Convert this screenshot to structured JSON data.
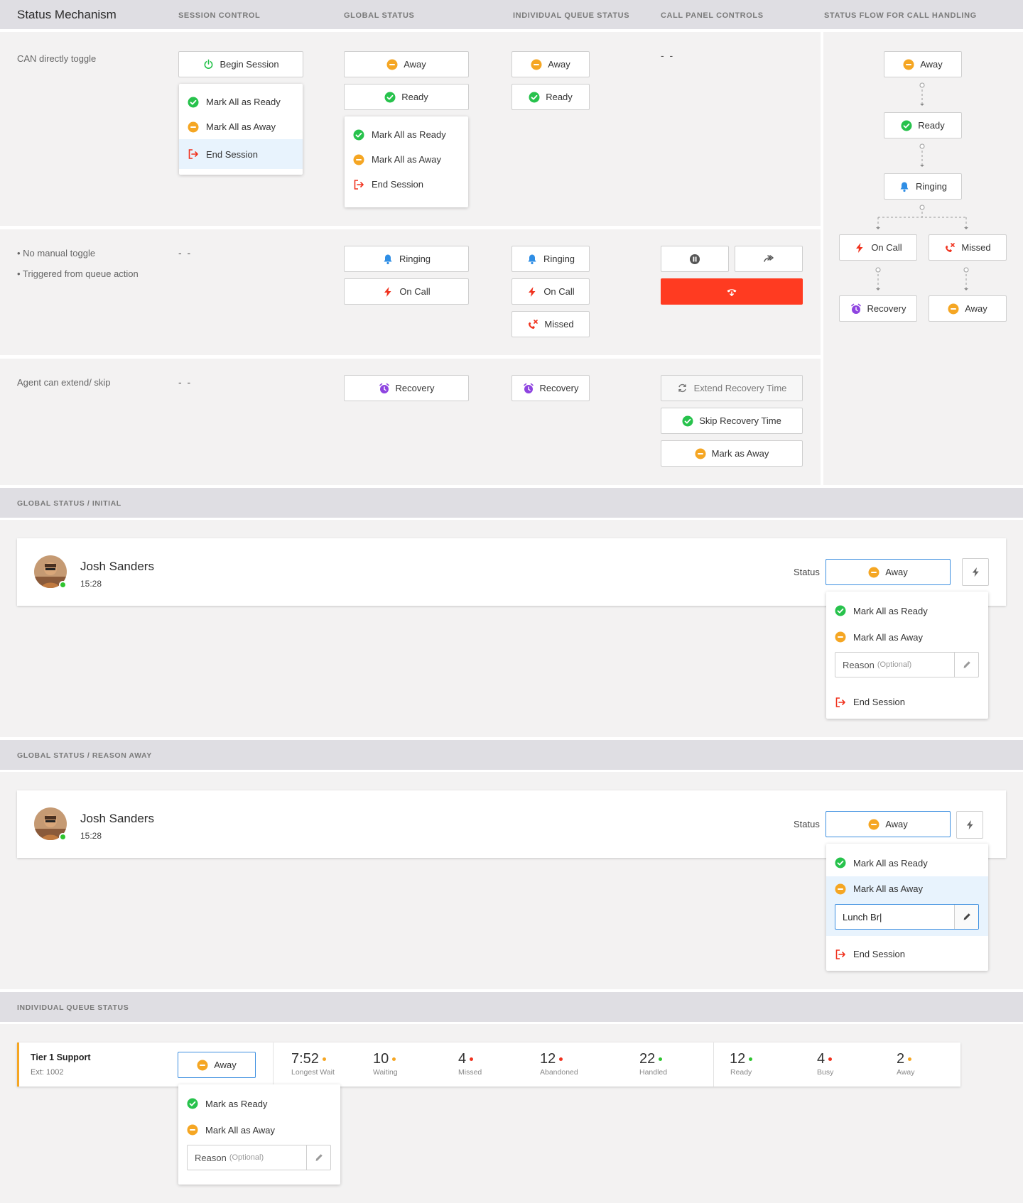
{
  "header": {
    "title": "Status Mechanism",
    "columns": [
      "SESSION CONTROL",
      "GLOBAL STATUS",
      "INDIVIDUAL QUEUE STATUS",
      "CALL PANEL CONTROLS",
      "STATUS FLOW FOR CALL HANDLING"
    ]
  },
  "rows": {
    "row1_label": "CAN directly toggle",
    "row2_label_1": "• No manual toggle",
    "row2_label_2": "• Triggered from queue action",
    "row3_label": "Agent can extend/ skip",
    "dash": "- -"
  },
  "labels": {
    "begin_session": "Begin Session",
    "away": "Away",
    "ready": "Ready",
    "ringing": "Ringing",
    "on_call": "On Call",
    "missed": "Missed",
    "recovery": "Recovery",
    "mark_all_ready": "Mark All as Ready",
    "mark_all_away": "Mark All as Away",
    "end_session": "End Session",
    "extend_recovery": "Extend Recovery Time",
    "skip_recovery": "Skip Recovery Time",
    "mark_as_away": "Mark as Away",
    "mark_as_ready": "Mark as Ready",
    "reason": "Reason",
    "optional": "(Optional)",
    "status": "Status"
  },
  "sections": {
    "initial": "GLOBAL STATUS / INITIAL",
    "reason_away": "GLOBAL STATUS / REASON AWAY",
    "queue": "INDIVIDUAL QUEUE STATUS"
  },
  "agent": {
    "name": "Josh Sanders",
    "time": "15:28",
    "reason_value": "Lunch Br|"
  },
  "queue": {
    "name": "Tier 1 Support",
    "ext": "Ext: 1002",
    "stats": [
      {
        "value": "7:52",
        "label": "Longest Wait",
        "color": "#f5a623"
      },
      {
        "value": "10",
        "label": "Waiting",
        "color": "#f5a623"
      },
      {
        "value": "4",
        "label": "Missed",
        "color": "#f0321e"
      },
      {
        "value": "12",
        "label": "Abandoned",
        "color": "#f0321e"
      },
      {
        "value": "22",
        "label": "Handled",
        "color": "#2fc42f"
      },
      {
        "value": "12",
        "label": "Ready",
        "color": "#2fc42f"
      },
      {
        "value": "4",
        "label": "Busy",
        "color": "#f0321e"
      },
      {
        "value": "2",
        "label": "Away",
        "color": "#f5a623"
      }
    ]
  },
  "colors": {
    "ready": "#27c24c",
    "away": "#f5a623",
    "ringing": "#2f8ee5",
    "oncall": "#f0321e",
    "recovery": "#8e44e0",
    "accent": "#3d8fe0",
    "hangup": "#ff3b21"
  }
}
